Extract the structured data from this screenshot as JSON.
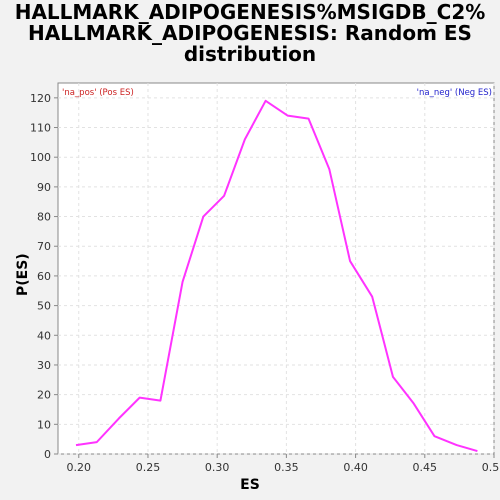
{
  "chart_data": {
    "type": "line",
    "title_lines": [
      "HALLMARK_ADIPOGENESIS%MSIGDB_C2%",
      "HALLMARK_ADIPOGENESIS: Random ES",
      "distribution"
    ],
    "xlabel": "ES",
    "ylabel": "P(ES)",
    "xlim": [
      0.185,
      0.5
    ],
    "ylim": [
      0,
      125
    ],
    "x_ticks": [
      "0.20",
      "0.25",
      "0.30",
      "0.35",
      "0.40",
      "0.45",
      "0.50"
    ],
    "y_ticks": [
      "0",
      "10",
      "20",
      "30",
      "40",
      "50",
      "60",
      "70",
      "80",
      "90",
      "100",
      "110",
      "120"
    ],
    "grid": true,
    "legend_pos_label": "'na_pos' (Pos ES)",
    "legend_neg_label": "'na_neg' (Neg ES)",
    "series": [
      {
        "color": "#ff33ff",
        "x": [
          0.198,
          0.213,
          0.229,
          0.244,
          0.259,
          0.275,
          0.29,
          0.305,
          0.32,
          0.335,
          0.351,
          0.366,
          0.381,
          0.396,
          0.412,
          0.427,
          0.442,
          0.457,
          0.473,
          0.488
        ],
        "y": [
          3,
          4,
          12,
          19,
          18,
          58,
          80,
          87,
          106,
          119,
          114,
          113,
          96,
          65,
          53,
          26,
          17,
          6,
          3,
          1
        ]
      }
    ]
  }
}
